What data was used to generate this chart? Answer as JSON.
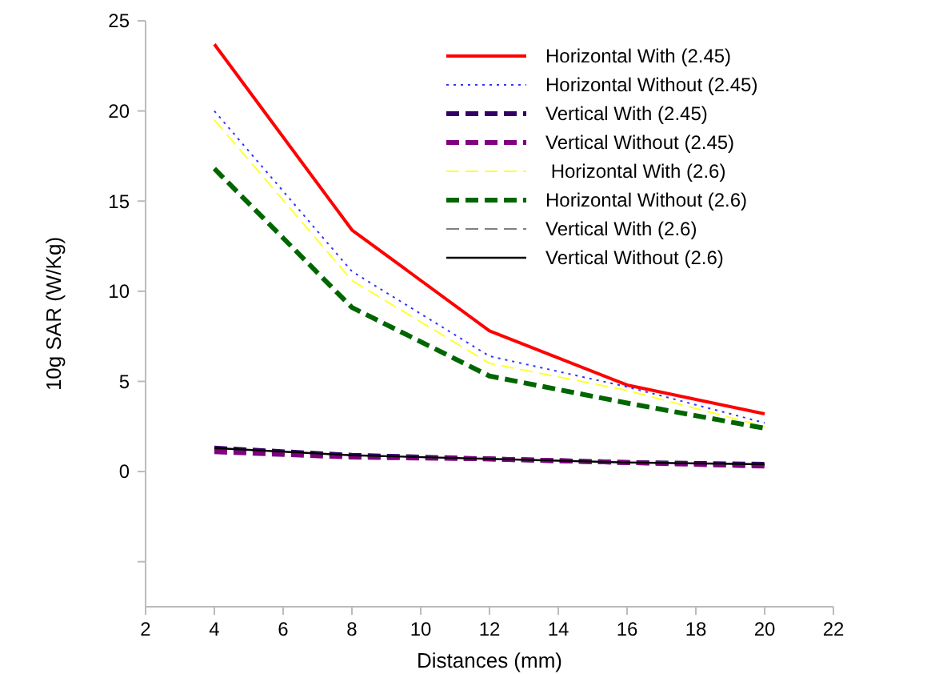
{
  "chart_data": {
    "type": "line",
    "xlabel": "Distances (mm)",
    "ylabel": "10g SAR (W/Kg)",
    "x": [
      4,
      8,
      12,
      16,
      20
    ],
    "xlim": [
      2,
      22
    ],
    "xticks": [
      2,
      4,
      6,
      8,
      10,
      12,
      14,
      16,
      18,
      20,
      22
    ],
    "ylim": [
      -7.5,
      25
    ],
    "yticks": [
      {
        "value": -5,
        "label": null
      },
      0,
      5,
      10,
      15,
      20,
      25
    ],
    "grid": false,
    "legend": "top right",
    "marker": "none",
    "series": [
      {
        "name": "Horizontal With (2.45)",
        "color": "#ff0000",
        "line_style": "solid",
        "values": [
          23.7,
          13.4,
          7.8,
          4.8,
          3.2
        ]
      },
      {
        "name": "Horizontal Without (2.45)",
        "color": "#3333ff",
        "line_style": "dotted",
        "values": [
          20,
          11.1,
          6.4,
          4.7,
          2.7
        ]
      },
      {
        "name": "Vertical With (2.45)",
        "color": "#330066",
        "line_style": "dashed",
        "values": [
          1.3,
          0.9,
          0.7,
          0.5,
          0.4
        ]
      },
      {
        "name": "Vertical Without (2.45)",
        "color": "#800080",
        "line_style": "dashed",
        "values": [
          1.1,
          0.8,
          0.7,
          0.5,
          0.3
        ]
      },
      {
        "name": " Horizontal With (2.6)",
        "color": "#ffff33",
        "line_style": "dashed",
        "values": [
          19.5,
          10.6,
          6,
          4.5,
          2.5
        ]
      },
      {
        "name": "Horizontal Without (2.6)",
        "color": "#006600",
        "line_style": "dashed",
        "values": [
          16.8,
          9.1,
          5.3,
          3.8,
          2.4
        ]
      },
      {
        "name": "Vertical With (2.6)",
        "color": "#808080",
        "line_style": "dashed",
        "values": [
          1.3,
          0.9,
          0.7,
          0.5,
          0.4
        ]
      },
      {
        "name": "Vertical Without (2.6)",
        "color": "#000000",
        "line_style": "solid",
        "values": [
          1.3,
          0.9,
          0.7,
          0.5,
          0.4
        ]
      }
    ]
  }
}
